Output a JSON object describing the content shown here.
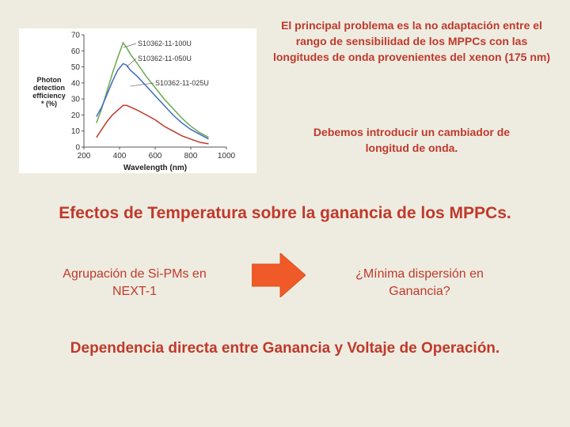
{
  "chart_data": {
    "type": "line",
    "ylabel": "Photon detection efficiency * (%)",
    "xlabel": "Wavelength (nm)",
    "xlim": [
      200,
      1000
    ],
    "ylim": [
      0,
      70
    ],
    "x_ticks": [
      "200",
      "400",
      "600",
      "800",
      "1000"
    ],
    "y_ticks": [
      "0",
      "10",
      "20",
      "30",
      "40",
      "50",
      "60",
      "70"
    ],
    "series": [
      {
        "name": "S10362-11-100U",
        "color": "#6aa84f",
        "x": [
          270,
          300,
          330,
          360,
          390,
          420,
          440,
          460,
          500,
          550,
          600,
          650,
          700,
          750,
          800,
          850,
          900
        ],
        "y": [
          15,
          24,
          35,
          46,
          56,
          65,
          62,
          58,
          52,
          44,
          37,
          30,
          24,
          18,
          13,
          9,
          6
        ]
      },
      {
        "name": "S10362-11-050U",
        "color": "#3d6bc4",
        "x": [
          270,
          300,
          330,
          360,
          390,
          420,
          440,
          460,
          500,
          550,
          600,
          650,
          700,
          750,
          800,
          850,
          900
        ],
        "y": [
          19,
          25,
          33,
          41,
          48,
          52,
          51,
          48,
          44,
          38,
          32,
          26,
          20,
          15,
          11,
          8,
          5
        ]
      },
      {
        "name": "S10362-11-025U",
        "color": "#c0392b",
        "x": [
          270,
          300,
          330,
          360,
          390,
          420,
          440,
          460,
          500,
          550,
          600,
          650,
          700,
          750,
          800,
          850,
          900
        ],
        "y": [
          6,
          11,
          16,
          20,
          23,
          26,
          26,
          25,
          23,
          20,
          17,
          13,
          10,
          7,
          5,
          3,
          2
        ]
      }
    ]
  },
  "notes": {
    "top": "El principal problema es la no adaptación entre el rango de sensibilidad de los MPPCs con las longitudes de onda provenientes del xenon (175 nm)",
    "middle": "Debemos introducir un cambiador de longitud de onda."
  },
  "section_heading": "Efectos de Temperatura sobre la ganancia de los MPPCs.",
  "flow": {
    "left": "Agrupación de Si-PMs en NEXT-1",
    "right": "¿Mínima dispersión en Ganancia?",
    "arrow_color": "#f05a28"
  },
  "conclusion": "Dependencia directa entre Ganancia y Voltaje de Operación."
}
